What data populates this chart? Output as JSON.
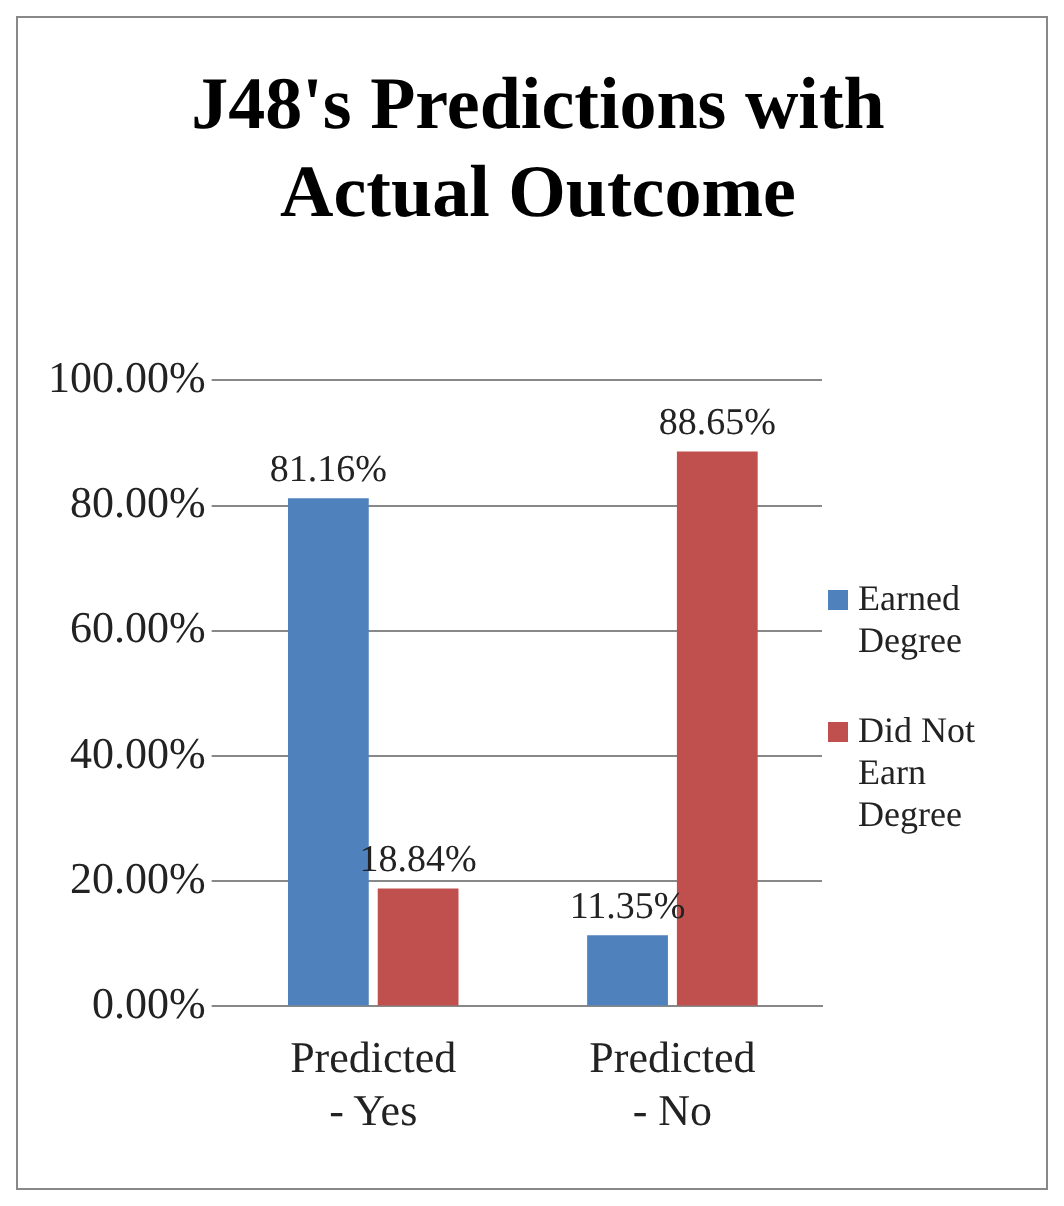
{
  "chart_data": {
    "type": "bar",
    "title": "J48's Predictions with Actual Outcome",
    "categories": [
      "Predicted - Yes",
      "Predicted - No"
    ],
    "series": [
      {
        "name": "Earned Degree",
        "color": "#4f81bd",
        "values": [
          81.16,
          11.35
        ],
        "value_labels": [
          "81.16%",
          "11.35%"
        ]
      },
      {
        "name": "Did Not Earn Degree",
        "color": "#c0504d",
        "values": [
          18.84,
          88.65
        ],
        "value_labels": [
          "18.84%",
          "88.65%"
        ]
      }
    ],
    "ylim": [
      0,
      100
    ],
    "yticks": [
      {
        "value": 0,
        "label": "0.00%"
      },
      {
        "value": 20,
        "label": "20.00%"
      },
      {
        "value": 40,
        "label": "40.00%"
      },
      {
        "value": 60,
        "label": "60.00%"
      },
      {
        "value": 80,
        "label": "80.00%"
      },
      {
        "value": 100,
        "label": "100.00%"
      }
    ],
    "grid": "y",
    "legend": "right"
  }
}
